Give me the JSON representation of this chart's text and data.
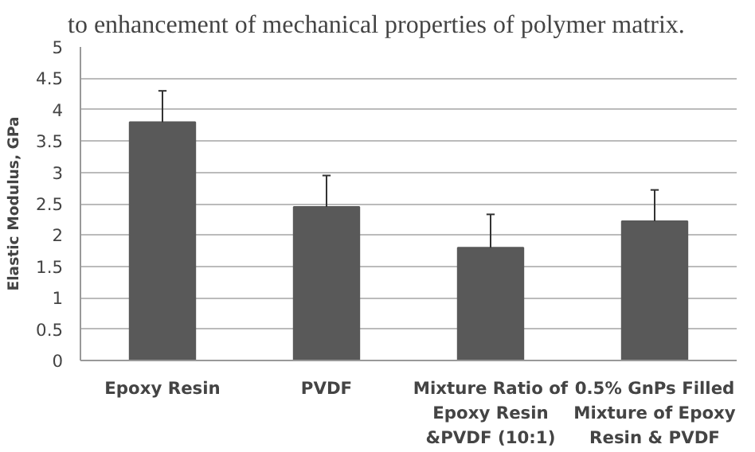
{
  "chart_data": {
    "type": "bar",
    "annotations": [
      "to enhancement of mechanical properties of polymer matrix."
    ],
    "ylabel": "Elastic Modulus, GPa",
    "categories": [
      "Epoxy Resin",
      "PVDF",
      "Mixture Ratio of Epoxy Resin &PVDF (10:1)",
      "0.5% GnPs Filled Mixture of Epoxy Resin & PVDF"
    ],
    "values": [
      3.8,
      2.45,
      1.8,
      2.22
    ],
    "errors": [
      [
        3.8,
        4.3
      ],
      [
        2.45,
        2.95
      ],
      [
        1.8,
        2.33
      ],
      [
        2.22,
        2.72
      ]
    ],
    "color": "#595959",
    "ylim": [
      0,
      5
    ],
    "yticks": [
      0,
      0.5,
      1,
      1.5,
      2,
      2.5,
      3,
      3.5,
      4,
      4.5,
      5
    ],
    "grid": "y"
  }
}
